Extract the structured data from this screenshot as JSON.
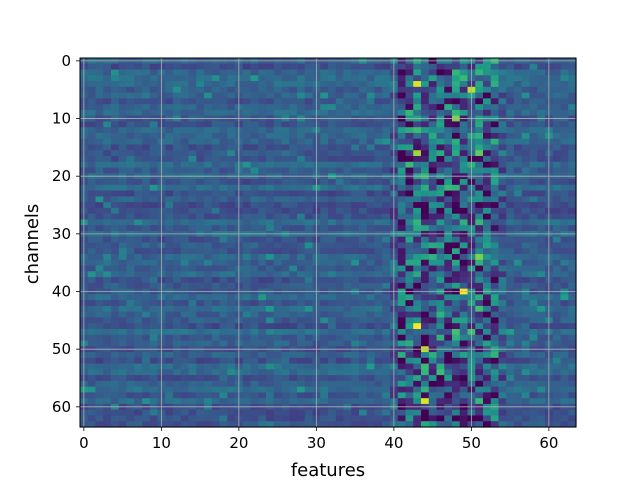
{
  "chart_data": {
    "type": "heatmap",
    "title": "",
    "xlabel": "features",
    "ylabel": "channels",
    "rows": 64,
    "cols": 64,
    "xlim": [
      -0.5,
      63.5
    ],
    "ylim": [
      63.5,
      -0.5
    ],
    "xticks": [
      0,
      10,
      20,
      30,
      40,
      50,
      60
    ],
    "yticks": [
      0,
      10,
      20,
      30,
      40,
      50,
      60
    ],
    "grid": true,
    "colormap": "viridis",
    "colormap_stops": [
      "#440154",
      "#482878",
      "#3e4989",
      "#31688e",
      "#26828e",
      "#1f9e89",
      "#35b779",
      "#6ece58",
      "#b5de2b",
      "#fde725"
    ],
    "baseline_level": 0.3,
    "active_band_columns": [
      40,
      54
    ],
    "hotspots": [
      {
        "row": 4,
        "col": 43,
        "value": 0.95
      },
      {
        "row": 5,
        "col": 50,
        "value": 0.9
      },
      {
        "row": 8,
        "col": 46,
        "value": 0.0
      },
      {
        "row": 10,
        "col": 48,
        "value": 0.8
      },
      {
        "row": 16,
        "col": 43,
        "value": 0.85
      },
      {
        "row": 16,
        "col": 51,
        "value": 0.75
      },
      {
        "row": 22,
        "col": 51,
        "value": 0.05
      },
      {
        "row": 34,
        "col": 51,
        "value": 0.8
      },
      {
        "row": 40,
        "col": 49,
        "value": 1.0
      },
      {
        "row": 46,
        "col": 43,
        "value": 1.0
      },
      {
        "row": 46,
        "col": 48,
        "value": 0.05
      },
      {
        "row": 50,
        "col": 44,
        "value": 0.9
      },
      {
        "row": 59,
        "col": 44,
        "value": 0.95
      },
      {
        "row": 62,
        "col": 49,
        "value": 0.05
      }
    ]
  }
}
